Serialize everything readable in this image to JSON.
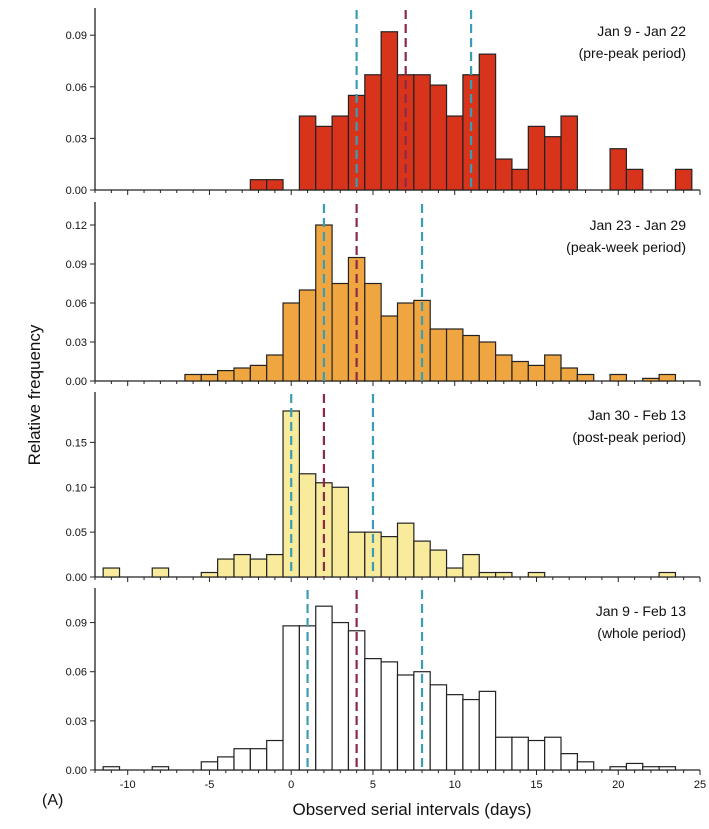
{
  "figure": {
    "panel_tag": "(A)",
    "xlabel": "Observed serial intervals (days)",
    "ylabel": "Relative frequency",
    "colors": {
      "pre_peak": "#d8341c",
      "peak_week": "#f0a640",
      "post_peak": "#f8ec9c",
      "whole": "#ffffff",
      "dash_median": "#8a2a48",
      "dash_quartile": "#3a9db5",
      "bar_stroke": "#222222"
    }
  },
  "chart_data": [
    {
      "type": "bar",
      "label_line1": "Jan 9 - Jan 22",
      "label_line2": "(pre-peak period)",
      "ylim": [
        0,
        0.1
      ],
      "yticks": [
        0.0,
        0.03,
        0.06,
        0.09
      ],
      "ytick_labels": [
        "0.00",
        "0.03",
        "0.06",
        "0.09"
      ],
      "xticks": [
        -10,
        -5,
        0,
        5,
        10,
        15,
        20,
        25
      ],
      "xtick_labels": [],
      "xlim": [
        -12,
        25
      ],
      "fill": "#d8341c",
      "bins": [
        -3,
        -2,
        -1,
        0,
        1,
        2,
        3,
        4,
        5,
        6,
        7,
        8,
        9,
        10,
        11,
        12,
        13,
        14,
        15,
        16,
        20,
        21,
        24
      ],
      "values": [
        0.006,
        0.006,
        0.0,
        0.043,
        0.037,
        0.043,
        0.055,
        0.067,
        0.092,
        0.067,
        0.067,
        0.061,
        0.043,
        0.067,
        0.079,
        0.018,
        0.012,
        0.037,
        0.031,
        0.043,
        0.024,
        0.012,
        0.012
      ],
      "bin_starts_actual": [
        -2.5,
        -1.5,
        -0.5,
        0.5,
        1.5,
        2.5,
        3.5,
        4.5,
        5.5,
        6.5,
        7.5,
        8.5,
        9.5,
        10.5,
        11.5,
        12.5,
        13.5,
        14.5,
        15.5,
        16.5,
        19.5,
        20.5,
        23.5
      ],
      "dashes": [
        {
          "x": 4,
          "kind": "quartile"
        },
        {
          "x": 7,
          "kind": "median"
        },
        {
          "x": 11,
          "kind": "quartile"
        }
      ]
    },
    {
      "type": "bar",
      "label_line1": "Jan 23 - Jan 29",
      "label_line2": "(peak-week period)",
      "ylim": [
        0,
        0.13
      ],
      "yticks": [
        0.0,
        0.03,
        0.06,
        0.09,
        0.12
      ],
      "ytick_labels": [
        "0.00",
        "0.03",
        "0.06",
        "0.09",
        "0.12"
      ],
      "xticks": [
        -10,
        -5,
        0,
        5,
        10,
        15,
        20,
        25
      ],
      "xtick_labels": [],
      "xlim": [
        -12,
        25
      ],
      "fill": "#f0a640",
      "bin_starts_actual": [
        -6.5,
        -5.5,
        -4.5,
        -3.5,
        -2.5,
        -1.5,
        -0.5,
        0.5,
        1.5,
        2.5,
        3.5,
        4.5,
        5.5,
        6.5,
        7.5,
        8.5,
        9.5,
        10.5,
        11.5,
        12.5,
        13.5,
        14.5,
        15.5,
        16.5,
        17.5,
        19.5,
        21.5,
        22.5
      ],
      "values": [
        0.005,
        0.005,
        0.008,
        0.01,
        0.012,
        0.02,
        0.06,
        0.07,
        0.12,
        0.075,
        0.095,
        0.075,
        0.05,
        0.06,
        0.062,
        0.04,
        0.04,
        0.035,
        0.03,
        0.02,
        0.015,
        0.012,
        0.02,
        0.01,
        0.005,
        0.005,
        0.002,
        0.005
      ],
      "dashes": [
        {
          "x": 2,
          "kind": "quartile"
        },
        {
          "x": 4,
          "kind": "median"
        },
        {
          "x": 8,
          "kind": "quartile"
        }
      ]
    },
    {
      "type": "bar",
      "label_line1": "Jan 30 - Feb 13",
      "label_line2": "(post-peak period)",
      "ylim": [
        0,
        0.195
      ],
      "yticks": [
        0.0,
        0.05,
        0.1,
        0.15
      ],
      "ytick_labels": [
        "0.00",
        "0.05",
        "0.10",
        "0.15"
      ],
      "xticks": [
        -10,
        -5,
        0,
        5,
        10,
        15,
        20,
        25
      ],
      "xtick_labels": [],
      "xlim": [
        -12,
        25
      ],
      "fill": "#f8ec9c",
      "bin_starts_actual": [
        -11.5,
        -8.5,
        -5.5,
        -4.5,
        -3.5,
        -2.5,
        -1.5,
        -0.5,
        -0.5,
        0.5,
        1.5,
        2.5,
        3.5,
        4.5,
        5.5,
        6.5,
        7.5,
        8.5,
        9.5,
        10.5,
        11.5,
        12.5,
        14.5,
        22.5
      ],
      "values": [
        0.01,
        0.01,
        0.005,
        0.02,
        0.025,
        0.02,
        0.025,
        0.025,
        0.185,
        0.115,
        0.105,
        0.1,
        0.05,
        0.05,
        0.045,
        0.06,
        0.04,
        0.03,
        0.01,
        0.025,
        0.005,
        0.005,
        0.005,
        0.005
      ],
      "dashes": [
        {
          "x": 0,
          "kind": "quartile"
        },
        {
          "x": 2,
          "kind": "median"
        },
        {
          "x": 5,
          "kind": "quartile"
        }
      ]
    },
    {
      "type": "bar",
      "label_line1": "Jan 9 - Feb 13",
      "label_line2": "(whole period)",
      "ylim": [
        0,
        0.105
      ],
      "yticks": [
        0.0,
        0.03,
        0.06,
        0.09
      ],
      "ytick_labels": [
        "0.00",
        "0.03",
        "0.06",
        "0.09"
      ],
      "xticks": [
        -10,
        -5,
        0,
        5,
        10,
        15,
        20,
        25
      ],
      "xtick_labels": [
        "-10",
        "-5",
        "0",
        "5",
        "10",
        "15",
        "20",
        "25"
      ],
      "xlim": [
        -12,
        25
      ],
      "fill": "#ffffff",
      "bin_starts_actual": [
        -11.5,
        -8.5,
        -5.5,
        -4.5,
        -3.5,
        -2.5,
        -1.5,
        -0.5,
        0.5,
        1.5,
        2.5,
        3.5,
        4.5,
        5.5,
        6.5,
        7.5,
        8.5,
        9.5,
        10.5,
        11.5,
        12.5,
        13.5,
        14.5,
        15.5,
        16.5,
        17.5,
        19.5,
        20.5,
        21.5,
        22.5
      ],
      "values": [
        0.002,
        0.002,
        0.005,
        0.008,
        0.013,
        0.013,
        0.018,
        0.088,
        0.088,
        0.1,
        0.09,
        0.085,
        0.068,
        0.066,
        0.058,
        0.06,
        0.052,
        0.046,
        0.043,
        0.048,
        0.02,
        0.02,
        0.018,
        0.02,
        0.01,
        0.005,
        0.002,
        0.004,
        0.002,
        0.002
      ],
      "dashes": [
        {
          "x": 1,
          "kind": "quartile"
        },
        {
          "x": 4,
          "kind": "median"
        },
        {
          "x": 8,
          "kind": "quartile"
        }
      ]
    }
  ]
}
